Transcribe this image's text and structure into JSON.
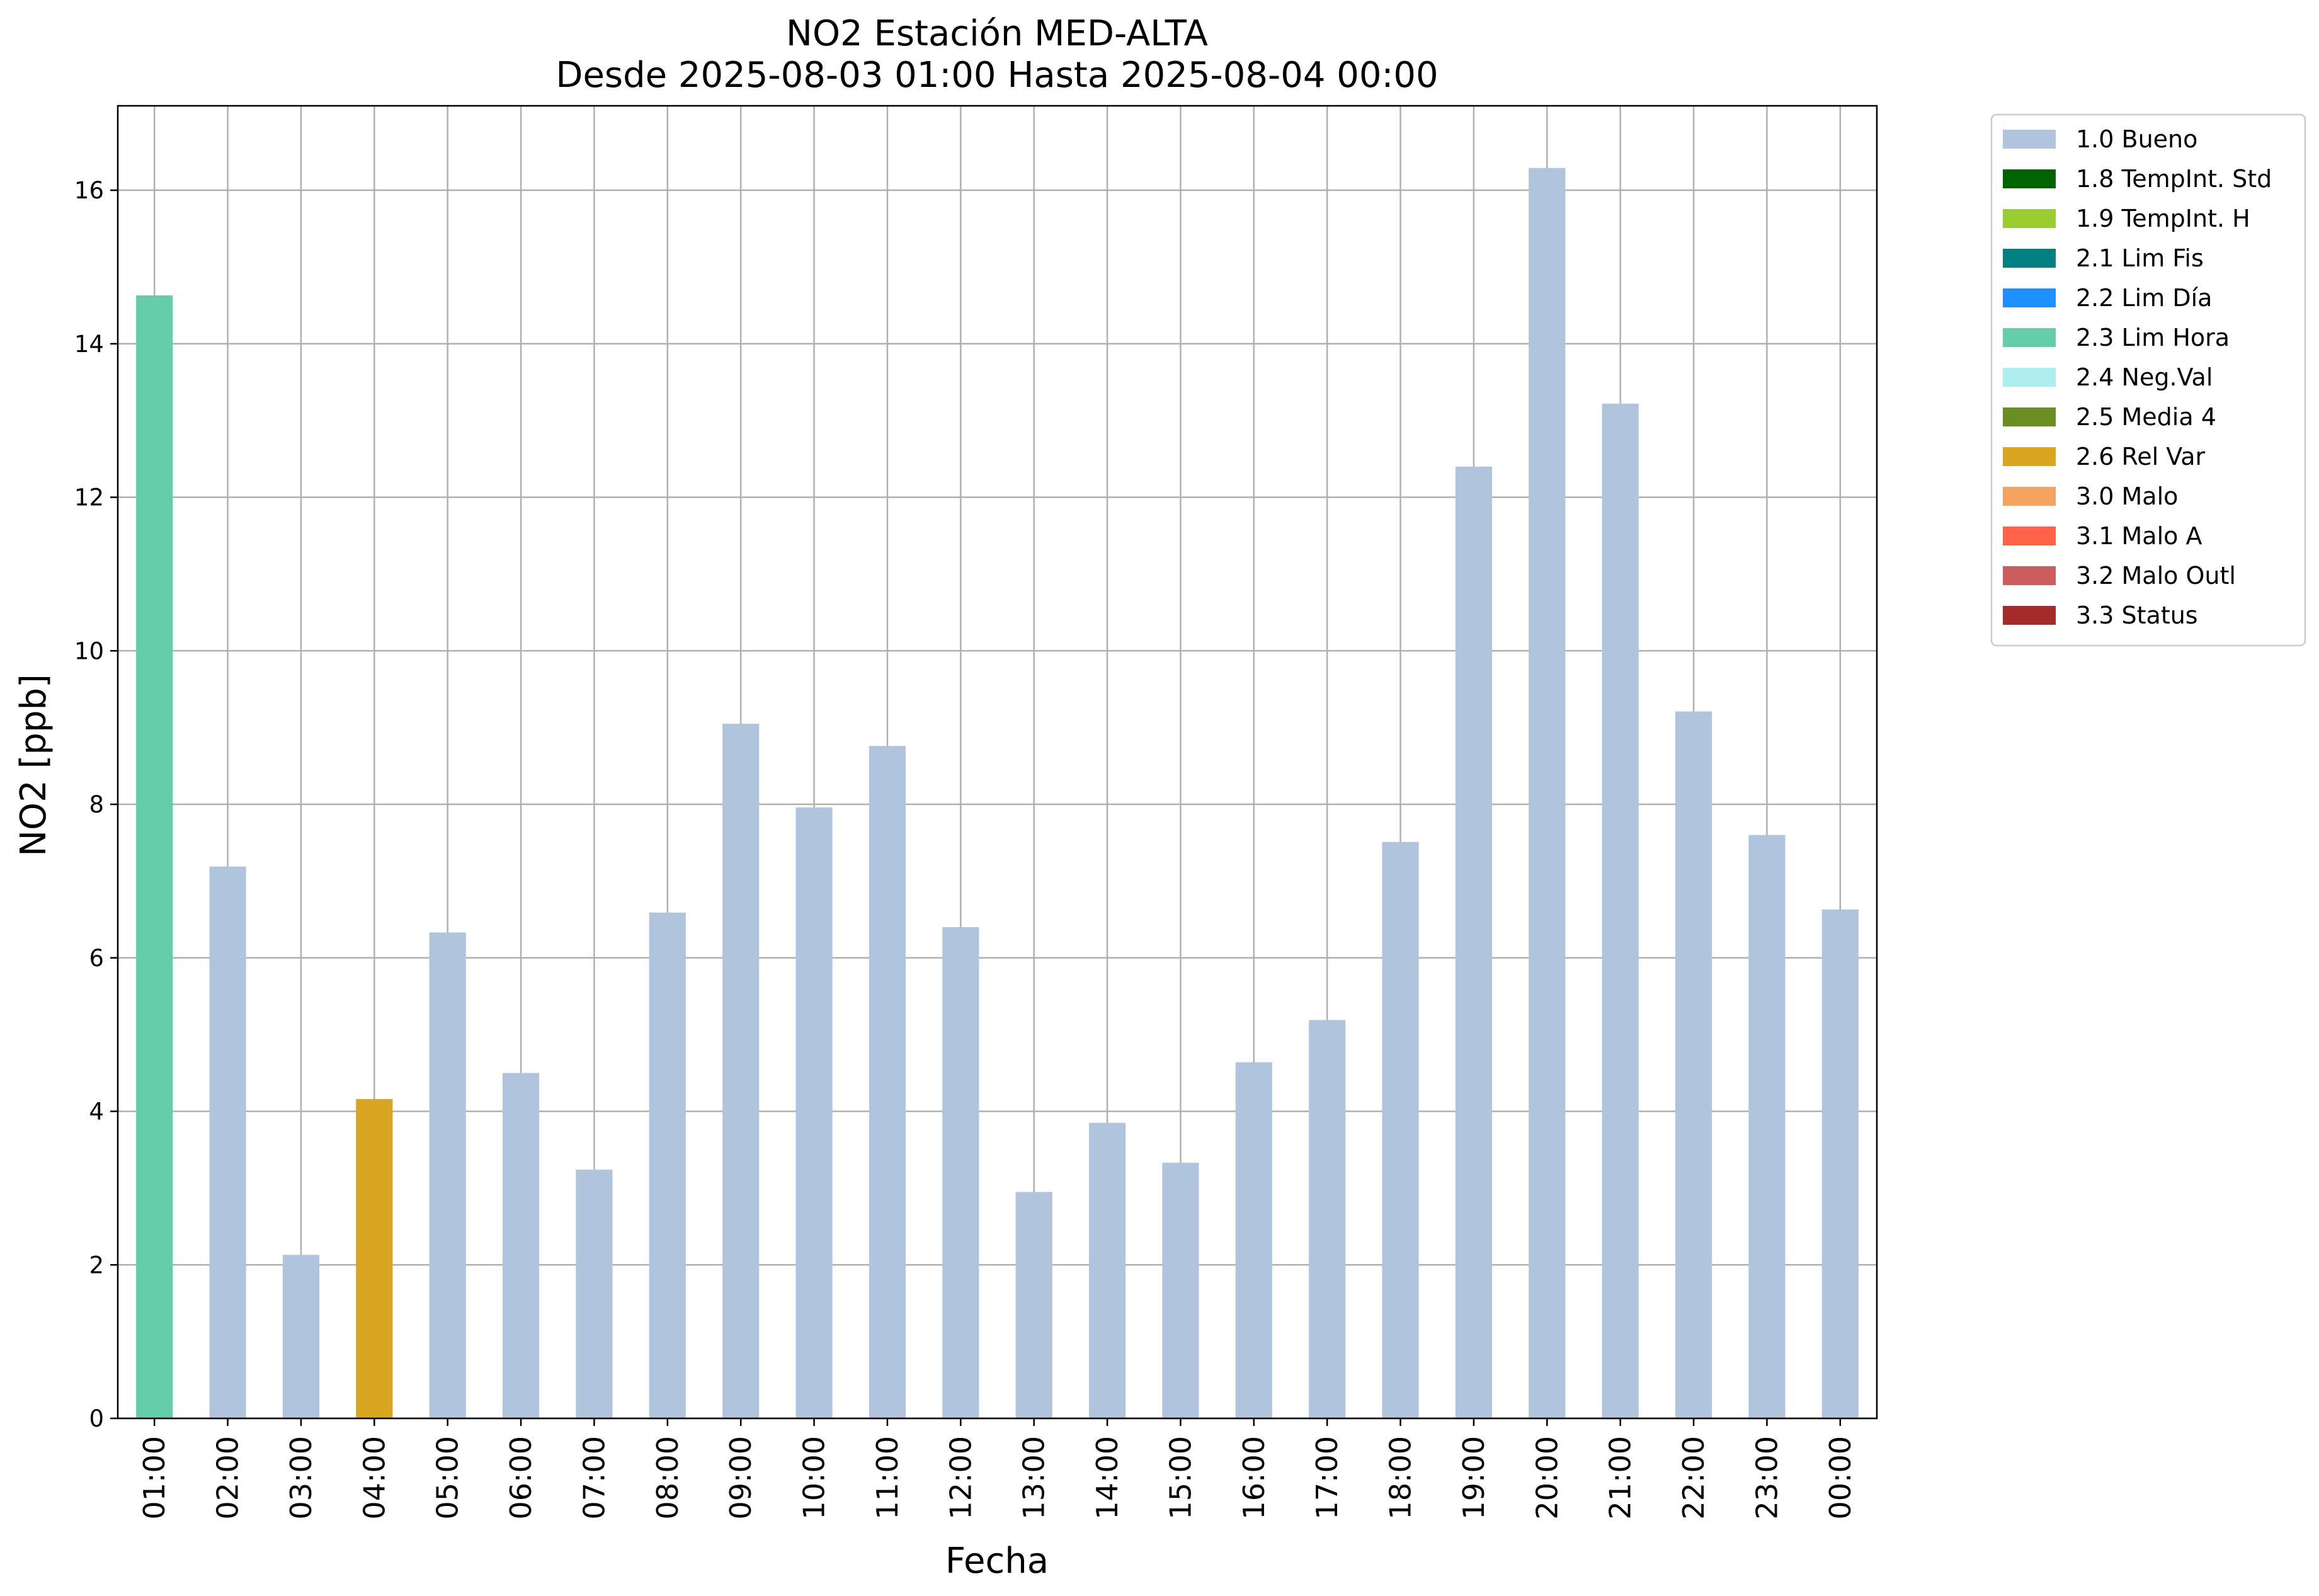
{
  "chart_data": {
    "type": "bar",
    "title": "NO2 Estación MED-ALTA",
    "subtitle": "Desde 2025-08-03 01:00 Hasta 2025-08-04 00:00",
    "xlabel": "Fecha",
    "ylabel": "NO2 [ppb]",
    "ylim": [
      0,
      17.1
    ],
    "yticks": [
      0,
      2,
      4,
      6,
      8,
      10,
      12,
      14,
      16
    ],
    "grid": true,
    "legend_position": "outside-top-right",
    "categories": [
      "01:00",
      "02:00",
      "03:00",
      "04:00",
      "05:00",
      "06:00",
      "07:00",
      "08:00",
      "09:00",
      "10:00",
      "11:00",
      "12:00",
      "13:00",
      "14:00",
      "15:00",
      "16:00",
      "17:00",
      "18:00",
      "19:00",
      "20:00",
      "21:00",
      "22:00",
      "23:00",
      "00:00"
    ],
    "values": [
      14.63,
      7.19,
      2.13,
      4.16,
      6.33,
      4.5,
      3.24,
      6.59,
      9.05,
      7.96,
      8.76,
      6.4,
      2.95,
      3.85,
      3.33,
      4.64,
      5.19,
      7.51,
      12.4,
      16.29,
      13.22,
      9.21,
      7.6,
      6.63
    ],
    "flags": [
      "2.3 Lim Hora",
      "1.0 Bueno",
      "1.0 Bueno",
      "2.6 Rel Var",
      "1.0 Bueno",
      "1.0 Bueno",
      "1.0 Bueno",
      "1.0 Bueno",
      "1.0 Bueno",
      "1.0 Bueno",
      "1.0 Bueno",
      "1.0 Bueno",
      "1.0 Bueno",
      "1.0 Bueno",
      "1.0 Bueno",
      "1.0 Bueno",
      "1.0 Bueno",
      "1.0 Bueno",
      "1.0 Bueno",
      "1.0 Bueno",
      "1.0 Bueno",
      "1.0 Bueno",
      "1.0 Bueno",
      "1.0 Bueno"
    ],
    "legend": [
      {
        "name": "1.0 Bueno",
        "color": "#b0c4de"
      },
      {
        "name": "1.8 TempInt. Std",
        "color": "#006400"
      },
      {
        "name": "1.9 TempInt. H",
        "color": "#9acd32"
      },
      {
        "name": "2.1 Lim Fis",
        "color": "#008080"
      },
      {
        "name": "2.2 Lim Día",
        "color": "#1e90ff"
      },
      {
        "name": "2.3 Lim Hora",
        "color": "#66cdaa"
      },
      {
        "name": "2.4 Neg.Val",
        "color": "#afeeee"
      },
      {
        "name": "2.5 Media 4",
        "color": "#6b8e23"
      },
      {
        "name": "2.6 Rel Var",
        "color": "#daa520"
      },
      {
        "name": "3.0 Malo",
        "color": "#f4a460"
      },
      {
        "name": "3.1 Malo A",
        "color": "#ff6347"
      },
      {
        "name": "3.2 Malo Outl",
        "color": "#cd5c5c"
      },
      {
        "name": "3.3 Status",
        "color": "#a52a2a"
      }
    ]
  }
}
